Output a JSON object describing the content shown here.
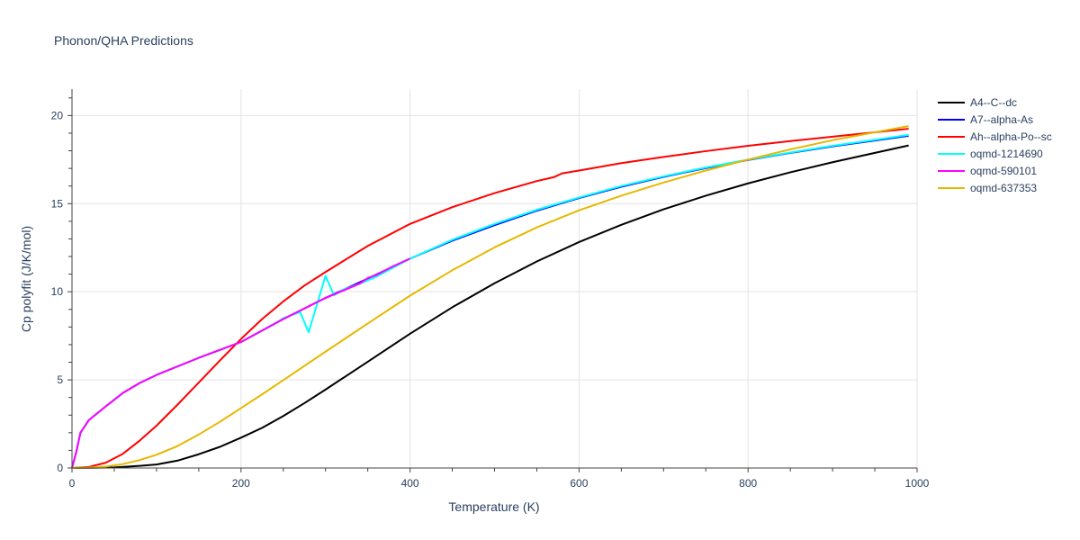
{
  "chart_data": {
    "type": "line",
    "title": "Phonon/QHA Predictions",
    "xlabel": "Temperature (K)",
    "ylabel": "Cp polyfit (J/K/mol)",
    "xlim": [
      0,
      1000
    ],
    "ylim": [
      0,
      21.5
    ],
    "xticks": [
      0,
      200,
      400,
      600,
      800,
      1000
    ],
    "yticks": [
      0,
      5,
      10,
      15,
      20
    ],
    "grid": true,
    "legend_position": "top-right",
    "series": [
      {
        "name": "A4--C--dc",
        "color": "#000000",
        "x": [
          0,
          20,
          50,
          80,
          100,
          125,
          150,
          175,
          200,
          225,
          250,
          275,
          300,
          350,
          400,
          450,
          500,
          550,
          600,
          650,
          700,
          750,
          800,
          850,
          900,
          950,
          990
        ],
        "y": [
          0,
          0.01,
          0.03,
          0.12,
          0.2,
          0.42,
          0.78,
          1.2,
          1.72,
          2.28,
          2.95,
          3.68,
          4.45,
          6.03,
          7.62,
          9.12,
          10.48,
          11.72,
          12.82,
          13.8,
          14.68,
          15.45,
          16.15,
          16.78,
          17.35,
          17.88,
          18.3
        ]
      },
      {
        "name": "A7--alpha-As",
        "color": "#0000ff",
        "x": [
          0,
          5,
          10,
          20,
          40,
          60,
          80,
          100,
          150,
          200,
          250,
          300,
          350,
          400,
          450,
          500,
          550,
          600,
          650,
          700,
          750,
          800,
          850,
          900,
          950,
          990
        ],
        "y": [
          0,
          0.9,
          2.0,
          2.72,
          3.5,
          4.25,
          4.82,
          5.28,
          6.25,
          7.15,
          8.45,
          9.65,
          10.75,
          11.88,
          12.9,
          13.78,
          14.6,
          15.32,
          15.96,
          16.52,
          17.02,
          17.48,
          17.88,
          18.25,
          18.58,
          18.85
        ]
      },
      {
        "name": "Ah--alpha-Po--sc",
        "color": "#ff0000",
        "x": [
          0,
          20,
          40,
          60,
          80,
          100,
          125,
          150,
          175,
          200,
          225,
          250,
          275,
          300,
          350,
          400,
          450,
          500,
          550,
          570,
          580,
          600,
          650,
          700,
          750,
          800,
          850,
          900,
          950,
          990
        ],
        "y": [
          0,
          0.06,
          0.3,
          0.8,
          1.55,
          2.4,
          3.6,
          4.85,
          6.1,
          7.32,
          8.45,
          9.45,
          10.35,
          11.12,
          12.6,
          13.85,
          14.8,
          15.6,
          16.28,
          16.5,
          16.72,
          16.88,
          17.3,
          17.65,
          17.98,
          18.28,
          18.55,
          18.8,
          19.05,
          19.25
        ]
      },
      {
        "name": "oqmd-1214690",
        "color": "#00ffff",
        "x": [
          0,
          5,
          10,
          20,
          40,
          60,
          80,
          100,
          150,
          200,
          240,
          250,
          270,
          280,
          290,
          300,
          310,
          320,
          340,
          360,
          400,
          450,
          500,
          550,
          600,
          650,
          700,
          750,
          800,
          850,
          900,
          950,
          990
        ],
        "y": [
          0,
          0.9,
          2.0,
          2.72,
          3.5,
          4.25,
          4.82,
          5.28,
          6.25,
          7.15,
          8.2,
          8.5,
          8.85,
          7.7,
          9.3,
          10.9,
          9.8,
          10.1,
          10.45,
          10.85,
          11.88,
          12.95,
          13.85,
          14.65,
          15.35,
          16.0,
          16.55,
          17.05,
          17.5,
          17.9,
          18.28,
          18.62,
          18.9
        ]
      },
      {
        "name": "oqmd-590101",
        "color": "#ff00ff",
        "x": [
          0,
          5,
          10,
          20,
          40,
          60,
          80,
          100,
          150,
          200,
          250,
          300,
          320,
          340,
          350,
          360,
          380,
          400
        ],
        "y": [
          0,
          0.9,
          2.0,
          2.72,
          3.5,
          4.25,
          4.82,
          5.28,
          6.25,
          7.15,
          8.45,
          9.65,
          10.05,
          10.45,
          10.78,
          10.95,
          11.45,
          11.88
        ]
      },
      {
        "name": "oqmd-637353",
        "color": "#e6b800",
        "x": [
          0,
          20,
          40,
          60,
          80,
          100,
          125,
          150,
          175,
          200,
          225,
          250,
          300,
          350,
          400,
          450,
          500,
          550,
          600,
          650,
          700,
          750,
          800,
          850,
          900,
          950,
          990
        ],
        "y": [
          0,
          0.02,
          0.08,
          0.22,
          0.45,
          0.75,
          1.25,
          1.9,
          2.62,
          3.4,
          4.18,
          4.98,
          6.6,
          8.2,
          9.78,
          11.22,
          12.52,
          13.65,
          14.62,
          15.45,
          16.2,
          16.88,
          17.5,
          18.08,
          18.6,
          19.05,
          19.4
        ]
      }
    ]
  }
}
